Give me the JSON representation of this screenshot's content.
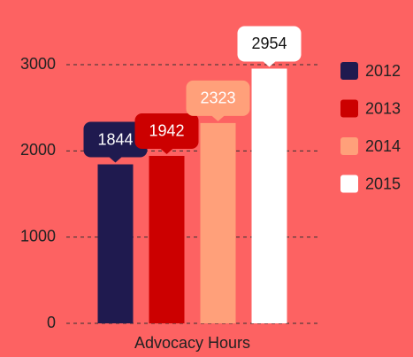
{
  "chart_data": {
    "type": "bar",
    "categories": [
      "Advocacy Hours"
    ],
    "series": [
      {
        "name": "2012",
        "color": "#1f1a4f",
        "values": [
          1844
        ]
      },
      {
        "name": "2013",
        "color": "#cc0000",
        "values": [
          1942
        ]
      },
      {
        "name": "2014",
        "color": "#ffa07a",
        "values": [
          2323
        ]
      },
      {
        "name": "2015",
        "color": "#ffffff",
        "values": [
          2954
        ]
      }
    ],
    "ylim": [
      0,
      3000
    ],
    "yticks": [
      0,
      1000,
      2000,
      3000
    ],
    "grid": true,
    "legend": "right",
    "data_labels": true
  }
}
